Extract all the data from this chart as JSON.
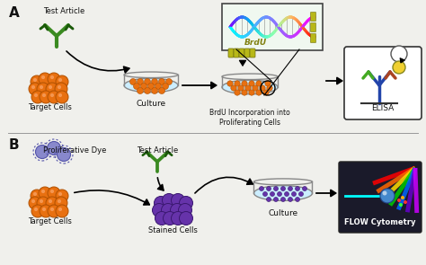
{
  "bg_color": "#f0f0ec",
  "border_color": "#bbbbbb",
  "orange_cell_color": "#e87010",
  "orange_cell_edge": "#b05000",
  "orange_cell_inner": "#f8a060",
  "purple_cell_color": "#6633aa",
  "purple_cell_edge": "#3a1870",
  "dye_color": "#8888cc",
  "dye_edge": "#5555aa",
  "ab_color": "#3a8a20",
  "ab_edge": "#1a5a08",
  "culture_fill": "#cceeff",
  "culture_edge": "#888888",
  "brdu_color": "#b8b818",
  "text_color": "#111111",
  "label_A": "A",
  "label_B": "B",
  "text_test_article_A": "Test Article",
  "text_target_cells_A": "Target Cells",
  "text_culture_A": "Culture",
  "text_brdu": "BrdU",
  "text_brdu_incorp": "BrdU Incorporation into\nProliferating Cells",
  "text_elisa": "ELISA",
  "text_prolif_dye": "Proliferative Dye",
  "text_test_article_B": "Test Article",
  "text_target_cells_B": "Target Cells",
  "text_stained_cells": "Stained Cells",
  "text_culture_B": "Culture",
  "text_flow": "FLOW Cytometry",
  "elisa_box_color": "#ffffff",
  "flow_box_color": "#1a1a2a",
  "separator_color": "#999999",
  "dna_box_color": "#f0f8f0"
}
